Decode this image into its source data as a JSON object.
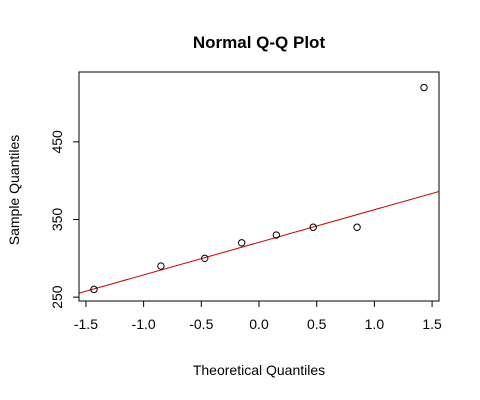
{
  "chart_data": {
    "type": "scatter",
    "title": "Normal Q-Q Plot",
    "xlabel": "Theoretical Quantiles",
    "ylabel": "Sample Quantiles",
    "xlim": [
      -1.56,
      1.56
    ],
    "ylim": [
      245,
      540
    ],
    "x_ticks": [
      -1.5,
      -1.0,
      -0.5,
      0.0,
      0.5,
      1.0,
      1.5
    ],
    "x_tick_labels": [
      "-1.5",
      "-1.0",
      "-0.5",
      "0.0",
      "0.5",
      "1.0",
      "1.5"
    ],
    "y_ticks": [
      250,
      350,
      450
    ],
    "y_tick_labels": [
      "250",
      "350",
      "450"
    ],
    "grid": false,
    "points": [
      {
        "x": -1.43,
        "y": 260
      },
      {
        "x": -0.85,
        "y": 290
      },
      {
        "x": -0.47,
        "y": 300
      },
      {
        "x": -0.15,
        "y": 320
      },
      {
        "x": 0.15,
        "y": 330
      },
      {
        "x": 0.47,
        "y": 340
      },
      {
        "x": 0.85,
        "y": 340
      },
      {
        "x": 1.43,
        "y": 520
      }
    ],
    "reference_line": {
      "intercept": 320.6,
      "slope": 42.0,
      "color": "#cc0000"
    },
    "point_color": "#000000"
  }
}
